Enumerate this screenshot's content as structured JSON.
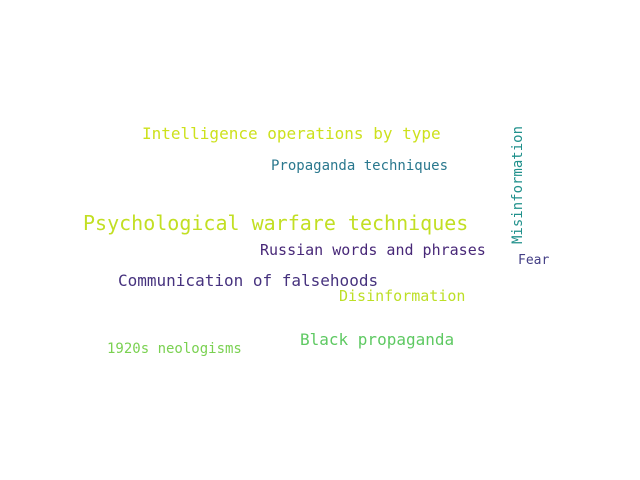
{
  "word_cloud": {
    "words": [
      {
        "text": "Intelligence operations by type",
        "color": "#cde11d"
      },
      {
        "text": "Propaganda techniques",
        "color": "#2a788e"
      },
      {
        "text": "Psychological warfare techniques",
        "color": "#c2df23"
      },
      {
        "text": "Russian words and phrases",
        "color": "#482878"
      },
      {
        "text": "Communication of falsehoods",
        "color": "#46327e"
      },
      {
        "text": "Disinformation",
        "color": "#bddf26"
      },
      {
        "text": "Black propaganda",
        "color": "#5ec962"
      },
      {
        "text": "1920s neologisms",
        "color": "#7ad151"
      },
      {
        "text": "Fear",
        "color": "#433e85"
      },
      {
        "text": "Misinformation",
        "color": "#21918c",
        "orientation": "vertical"
      }
    ]
  }
}
